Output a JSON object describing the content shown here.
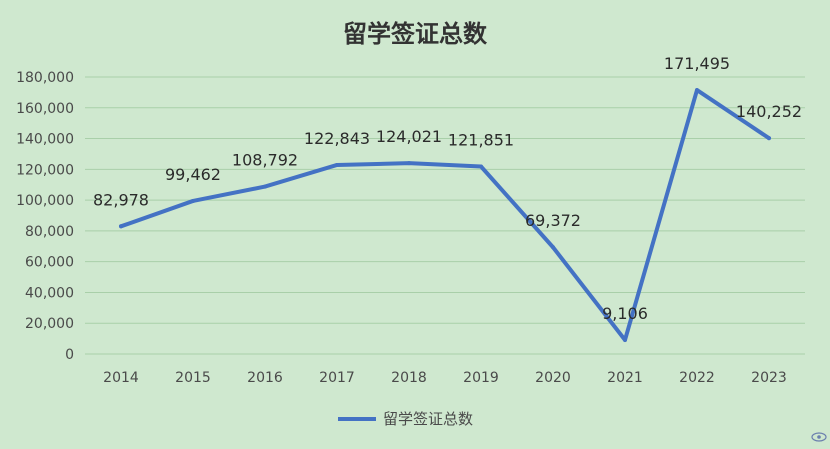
{
  "chart_data": {
    "type": "line",
    "title": "留学签证总数",
    "categories": [
      "2014",
      "2015",
      "2016",
      "2017",
      "2018",
      "2019",
      "2020",
      "2021",
      "2022",
      "2023"
    ],
    "series": [
      {
        "name": "留学签证总数",
        "values": [
          82978,
          99462,
          108792,
          122843,
          124021,
          121851,
          69372,
          9106,
          171495,
          140252
        ],
        "labels": [
          "82,978",
          "99,462",
          "108,792",
          "122,843",
          "124,021",
          "121,851",
          "69,372",
          "9,106",
          "171,495",
          "140,252"
        ],
        "color": "#4472c4"
      }
    ],
    "yticks": [
      "0",
      "20,000",
      "40,000",
      "60,000",
      "80,000",
      "100,000",
      "120,000",
      "140,000",
      "160,000",
      "180,000"
    ],
    "ylim": [
      0,
      180000
    ],
    "grid": true,
    "legend": "bottom"
  },
  "colors": {
    "background": "#cfe8cf",
    "gridline": "#a9cfa9",
    "line": "#4472c4"
  },
  "watermark_icon": "eye-logo-icon"
}
